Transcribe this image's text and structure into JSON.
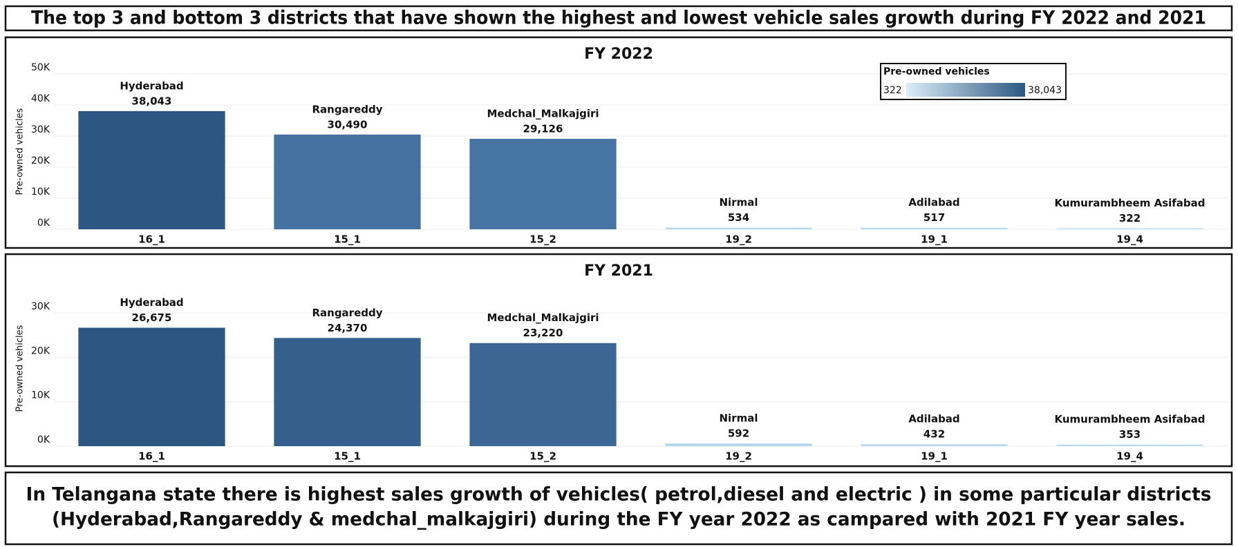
{
  "page": {
    "title": "The top 3 and bottom 3 districts that have shown the highest and lowest vehicle sales growth during FY 2022 and 2021",
    "note": [
      "In Telangana state there is highest sales growth of vehicles( petrol,diesel and electric ) in some particular districts",
      "(Hyderabad,Rangareddy & medchal_malkajgiri) during the FY year 2022 as campared with 2021 FY year sales."
    ]
  },
  "chart_data": [
    {
      "type": "bar",
      "title": "FY 2022",
      "y_label": "Pre-owned vehicles",
      "categories": [
        "16_1",
        "15_1",
        "15_2",
        "19_2",
        "19_1",
        "19_4"
      ],
      "districts": [
        "Hyderabad",
        "Rangareddy",
        "Medchal_Malkajgiri",
        "Nirmal",
        "Adilabad",
        "Kumurambheem Asifabad"
      ],
      "values": [
        38043,
        30490,
        29126,
        534,
        517,
        322
      ],
      "value_labels": [
        "38,043",
        "30,490",
        "29,126",
        "534",
        "517",
        "322"
      ],
      "colors": [
        "#2c5782",
        "#4572a1",
        "#4674a3",
        "#b7d9ec",
        "#bcdcee",
        "#c0def0"
      ],
      "ylim": [
        0,
        50000
      ],
      "yticks": [
        {
          "value": 0,
          "label": "0K"
        },
        {
          "value": 10000,
          "label": "10K"
        },
        {
          "value": 20000,
          "label": "20K"
        },
        {
          "value": 30000,
          "label": "30K"
        },
        {
          "value": 40000,
          "label": "40K"
        },
        {
          "value": 50000,
          "label": "50K"
        }
      ],
      "grid": true,
      "legend": {
        "title": "Pre-owned vehicles",
        "min": 322,
        "max": {
          "value": 38043,
          "label": "38,043"
        },
        "colors": [
          "#dbeef8",
          "#2c5782"
        ]
      }
    },
    {
      "type": "bar",
      "title": "FY 2021",
      "y_label": "Pre-owned vehicles",
      "categories": [
        "16_1",
        "15_1",
        "15_2",
        "19_2",
        "19_1",
        "19_4"
      ],
      "districts": [
        "Hyderabad",
        "Rangareddy",
        "Medchal_Malkajgiri",
        "Nirmal",
        "Adilabad",
        "Kumurambheem Asifabad"
      ],
      "values": [
        26675,
        24370,
        23220,
        592,
        432,
        353
      ],
      "value_labels": [
        "26,675",
        "24,370",
        "23,220",
        "592",
        "432",
        "353"
      ],
      "colors": [
        "#2d5782",
        "#355f8c",
        "#3c6795",
        "#b4d6ea",
        "#bad9ec",
        "#bfdcee"
      ],
      "ylim": [
        0,
        35000
      ],
      "yticks": [
        {
          "value": 0,
          "label": "0K"
        },
        {
          "value": 10000,
          "label": "10K"
        },
        {
          "value": 20000,
          "label": "20K"
        },
        {
          "value": 30000,
          "label": "30K"
        }
      ],
      "grid": true
    }
  ]
}
